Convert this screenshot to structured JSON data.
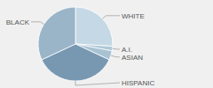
{
  "chart_data": {
    "type": "pie",
    "categories": [
      "WHITE",
      "A.I.",
      "ASIAN",
      "HISPANIC",
      "BLACK"
    ],
    "values": [
      26,
      2,
      4,
      36,
      32
    ],
    "colors": [
      "#c5d8e5",
      "#aec8d8",
      "#a8c2d2",
      "#7898b2",
      "#9ab4c8"
    ]
  }
}
